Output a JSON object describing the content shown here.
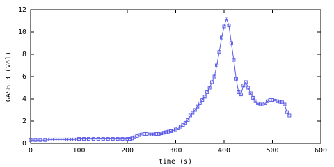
{
  "chart_data": {
    "type": "line",
    "xlabel": "time (s)",
    "ylabel": "GASB 3 (Vol)",
    "xlim": [
      0,
      600
    ],
    "xticks": [
      0,
      100,
      200,
      300,
      400,
      500,
      600
    ],
    "ylim": [
      0,
      12
    ],
    "yticks": [
      0,
      2,
      4,
      6,
      8,
      10,
      12
    ],
    "x": [
      0,
      10,
      20,
      30,
      40,
      50,
      60,
      70,
      80,
      90,
      100,
      110,
      120,
      130,
      140,
      150,
      160,
      170,
      180,
      190,
      200,
      205,
      210,
      215,
      220,
      225,
      230,
      235,
      240,
      245,
      250,
      255,
      260,
      265,
      270,
      275,
      280,
      285,
      290,
      295,
      300,
      305,
      310,
      315,
      320,
      325,
      330,
      335,
      340,
      345,
      350,
      355,
      360,
      365,
      370,
      375,
      380,
      385,
      390,
      395,
      400,
      405,
      410,
      415,
      420,
      425,
      430,
      435,
      440,
      445,
      450,
      455,
      460,
      465,
      470,
      475,
      480,
      485,
      490,
      495,
      500,
      505,
      510,
      515,
      520,
      525,
      530,
      535
    ],
    "series": [
      {
        "color": "#5a5ae6",
        "marker": "square",
        "values": [
          0.3,
          0.3,
          0.3,
          0.3,
          0.35,
          0.35,
          0.35,
          0.35,
          0.35,
          0.35,
          0.4,
          0.4,
          0.4,
          0.4,
          0.4,
          0.4,
          0.4,
          0.4,
          0.4,
          0.4,
          0.4,
          0.4,
          0.45,
          0.55,
          0.65,
          0.75,
          0.8,
          0.85,
          0.85,
          0.8,
          0.8,
          0.8,
          0.85,
          0.85,
          0.9,
          0.95,
          1.0,
          1.05,
          1.1,
          1.15,
          1.25,
          1.35,
          1.5,
          1.65,
          1.85,
          2.1,
          2.5,
          2.75,
          3.0,
          3.3,
          3.6,
          3.9,
          4.2,
          4.6,
          5.0,
          5.5,
          6.0,
          7.0,
          8.2,
          9.5,
          10.5,
          11.2,
          10.6,
          9.0,
          7.5,
          5.8,
          4.6,
          4.4,
          5.2,
          5.5,
          5.0,
          4.5,
          4.1,
          3.8,
          3.6,
          3.5,
          3.5,
          3.6,
          3.8,
          3.9,
          3.9,
          3.85,
          3.8,
          3.75,
          3.7,
          3.5,
          2.8,
          2.5
        ]
      }
    ]
  }
}
